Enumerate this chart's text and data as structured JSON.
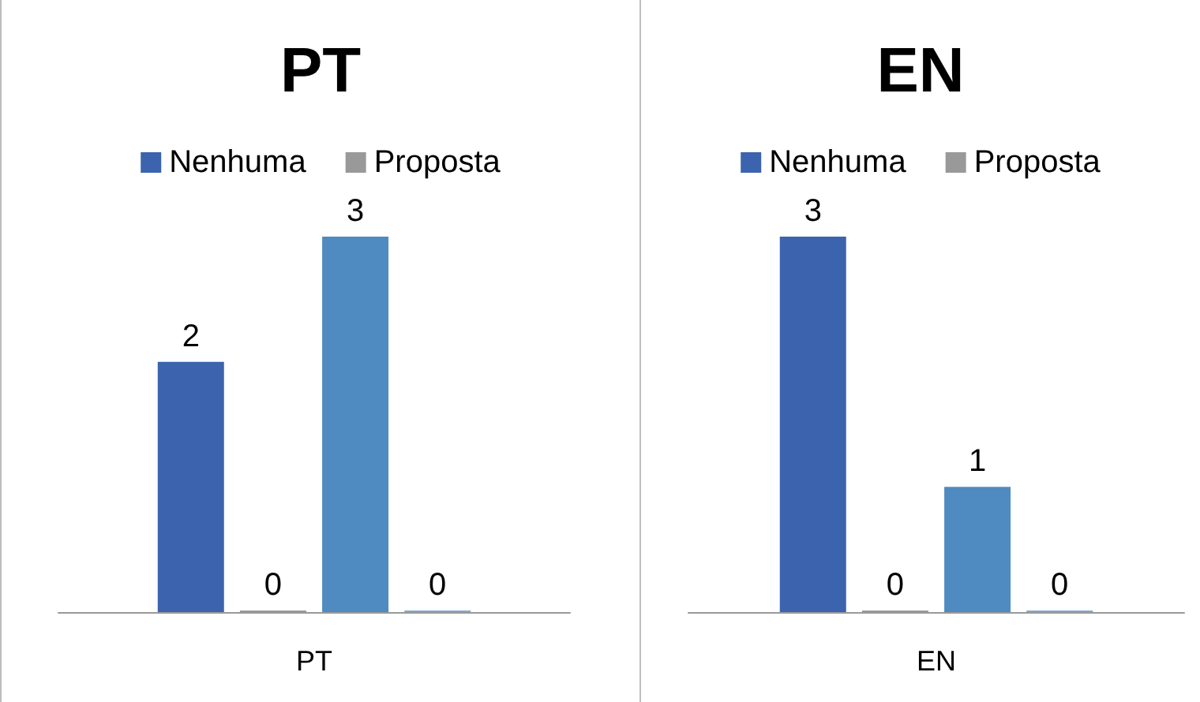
{
  "chart_data": [
    {
      "type": "bar",
      "title": "PT",
      "categories": [
        "PT"
      ],
      "series": [
        {
          "name": "Nenhuma",
          "color": "#3c63ae",
          "values": [
            2
          ]
        },
        {
          "name": "Proposta",
          "color": "#999999",
          "values": [
            0
          ]
        },
        {
          "color": "#4f8bc0",
          "values": [
            3
          ]
        },
        {
          "color": "#7fa6d6",
          "values": [
            0
          ]
        }
      ],
      "data_labels": true,
      "legend": "top"
    },
    {
      "type": "bar",
      "title": "EN",
      "categories": [
        "EN"
      ],
      "series": [
        {
          "name": "Nenhuma",
          "color": "#3c63ae",
          "values": [
            3
          ]
        },
        {
          "name": "Proposta",
          "color": "#999999",
          "values": [
            0
          ]
        },
        {
          "color": "#4f8bc0",
          "values": [
            1
          ]
        },
        {
          "color": "#7fa6d6",
          "values": [
            0
          ]
        }
      ],
      "data_labels": true,
      "legend": "top"
    }
  ]
}
